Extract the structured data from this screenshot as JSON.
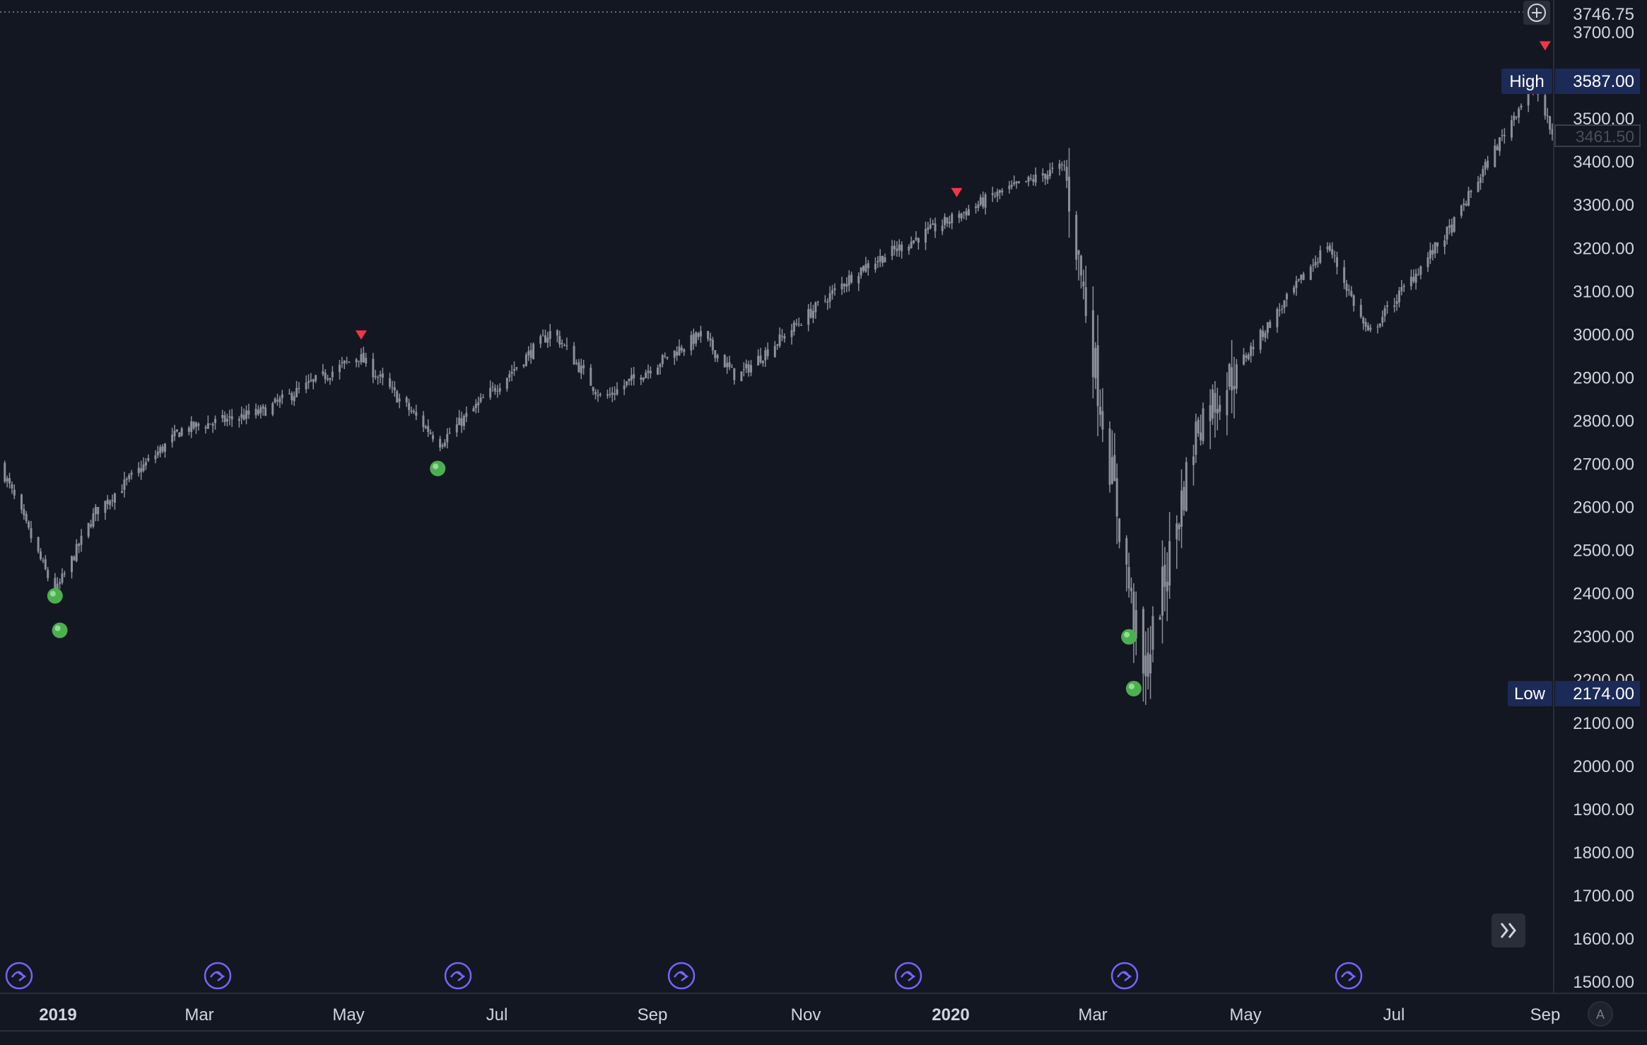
{
  "colors": {
    "background": "#131722",
    "candle": "#8c8f99",
    "axis_text": "#d1d4dc",
    "grid_line": "#2a2e39",
    "label_bg": "#1b2a57",
    "signal_up": "#4caf50",
    "signal_down": "#f23645",
    "event_icon": "#7b61ff"
  },
  "price_axis": {
    "ticks": [
      "3700.00",
      "3600.00",
      "3500.00",
      "3400.00",
      "3300.00",
      "3200.00",
      "3100.00",
      "3000.00",
      "2900.00",
      "2800.00",
      "2700.00",
      "2600.00",
      "2500.00",
      "2400.00",
      "2300.00",
      "2200.00",
      "2100.00",
      "2000.00",
      "1900.00",
      "1800.00",
      "1700.00",
      "1600.00",
      "1500.00"
    ],
    "crosshair_price": "3746.75",
    "last_price": "3461.50",
    "high_label": "High",
    "high_value": "3587.00",
    "low_label": "Low",
    "low_value": "2174.00"
  },
  "time_axis": {
    "labels": [
      "2019",
      "Mar",
      "May",
      "Jul",
      "Sep",
      "Nov",
      "2020",
      "Mar",
      "May",
      "Jul",
      "Sep"
    ],
    "auto_scale_label": "A"
  },
  "buttons": {
    "add_icon": "plus-circle-icon",
    "scroll_icon": "double-chevron-right-icon",
    "event_icon": "dividend-event-icon"
  },
  "chart_data": {
    "type": "candlestick",
    "x_range": [
      "2018-12-01",
      "2020-09-10"
    ],
    "ylim": [
      1480,
      3760
    ],
    "grid": false,
    "key_points": [
      {
        "date": "2018-12-01",
        "price": 2700
      },
      {
        "date": "2018-12-24",
        "price": 2400
      },
      {
        "date": "2019-01-10",
        "price": 2590
      },
      {
        "date": "2019-02-15",
        "price": 2780
      },
      {
        "date": "2019-03-20",
        "price": 2820
      },
      {
        "date": "2019-04-30",
        "price": 2950
      },
      {
        "date": "2019-06-03",
        "price": 2750
      },
      {
        "date": "2019-07-20",
        "price": 3010
      },
      {
        "date": "2019-08-10",
        "price": 2850
      },
      {
        "date": "2019-09-20",
        "price": 3000
      },
      {
        "date": "2019-10-05",
        "price": 2900
      },
      {
        "date": "2019-11-25",
        "price": 3150
      },
      {
        "date": "2020-01-20",
        "price": 3320
      },
      {
        "date": "2020-02-19",
        "price": 3390
      },
      {
        "date": "2020-03-23",
        "price": 2200
      },
      {
        "date": "2020-04-15",
        "price": 2800
      },
      {
        "date": "2020-06-08",
        "price": 3210
      },
      {
        "date": "2020-06-25",
        "price": 3000
      },
      {
        "date": "2020-07-30",
        "price": 3250
      },
      {
        "date": "2020-09-02",
        "price": 3587
      },
      {
        "date": "2020-09-10",
        "price": 3461.5
      }
    ],
    "buy_signals": [
      {
        "date": "2018-12-24",
        "price": 2395
      },
      {
        "date": "2018-12-26",
        "price": 2315
      },
      {
        "date": "2019-06-02",
        "price": 2690
      },
      {
        "date": "2020-03-17",
        "price": 2300
      },
      {
        "date": "2020-03-19",
        "price": 2180
      }
    ],
    "sell_signals": [
      {
        "date": "2019-05-01",
        "price": 3000
      },
      {
        "date": "2020-01-05",
        "price": 3330
      },
      {
        "date": "2020-09-07",
        "price": 3670
      },
      {
        "date": "2020-09-02",
        "price": 3565
      }
    ],
    "events": [
      "2018-12-01",
      "2019-02-15",
      "2019-05-15",
      "2019-08-15",
      "2019-11-15",
      "2020-02-15",
      "2020-05-15"
    ]
  }
}
